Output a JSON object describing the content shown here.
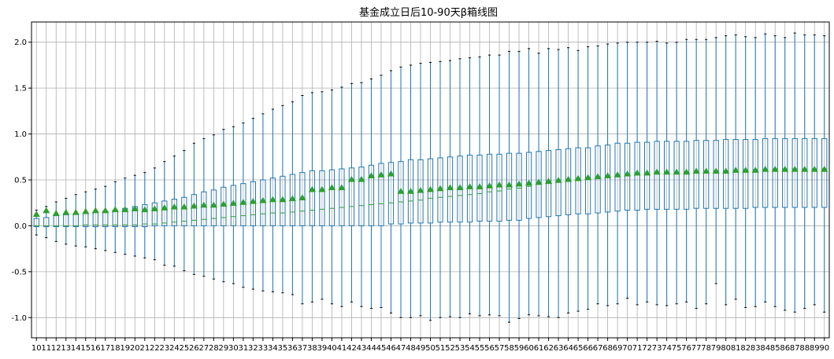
{
  "chart_data": {
    "type": "box",
    "title": "基金成立日后10-90天β箱线图",
    "xlabel": "",
    "ylabel": "",
    "ylim": [
      -1.22,
      2.22
    ],
    "yticks": [
      2.0,
      1.5,
      1.0,
      0.5,
      0.0,
      -0.5,
      -1.0
    ],
    "ytick_labels": [
      "2.0",
      "1.5",
      "1.0",
      "0.5",
      "0.0",
      "-0.5",
      "-1.0"
    ],
    "grid": true,
    "legend": "none",
    "colors": {
      "box": "#1f77b4",
      "median": "#2ca02c",
      "mean": "#2ca02c",
      "grid": "#b0b0b0",
      "axis": "#000000"
    },
    "categories": [
      "10",
      "11",
      "12",
      "13",
      "14",
      "15",
      "16",
      "17",
      "18",
      "19",
      "20",
      "21",
      "22",
      "23",
      "24",
      "25",
      "26",
      "27",
      "28",
      "29",
      "30",
      "31",
      "32",
      "33",
      "34",
      "35",
      "36",
      "37",
      "38",
      "39",
      "40",
      "41",
      "42",
      "43",
      "44",
      "45",
      "46",
      "47",
      "48",
      "49",
      "50",
      "51",
      "52",
      "53",
      "54",
      "55",
      "56",
      "57",
      "58",
      "59",
      "60",
      "61",
      "62",
      "63",
      "64",
      "65",
      "66",
      "67",
      "68",
      "69",
      "70",
      "71",
      "72",
      "73",
      "74",
      "75",
      "76",
      "77",
      "78",
      "79",
      "80",
      "81",
      "82",
      "83",
      "84",
      "85",
      "86",
      "87",
      "88",
      "89",
      "90"
    ],
    "series": [
      {
        "whisker_low": [
          -0.1,
          -0.13,
          -0.17,
          -0.2,
          -0.22,
          -0.23,
          -0.25,
          -0.27,
          -0.29,
          -0.31,
          -0.33,
          -0.35,
          -0.37,
          -0.43,
          -0.44,
          -0.49,
          -0.53,
          -0.55,
          -0.58,
          -0.61,
          -0.63,
          -0.67,
          -0.69,
          -0.71,
          -0.72,
          -0.73,
          -0.75,
          -0.85,
          -0.83,
          -0.8,
          -0.85,
          -0.88,
          -0.83,
          -0.88,
          -0.9,
          -0.89,
          -0.95,
          -1.0,
          -1.0,
          -0.98,
          -1.03,
          -1.0,
          -0.99,
          -1.0,
          -0.96,
          -0.98,
          -0.97,
          -0.98,
          -1.05,
          -1.01,
          -0.97,
          -0.98,
          -0.99,
          -1.0,
          -0.95,
          -0.93,
          -0.91,
          -0.85,
          -0.87,
          -0.85,
          -0.79,
          -0.86,
          -0.83,
          -0.86,
          -0.87,
          -0.85,
          -0.83,
          -0.9,
          -0.85,
          -0.63,
          -0.86,
          -0.8,
          -0.89,
          -0.88,
          -0.83,
          -0.88,
          -0.92,
          -0.94,
          -0.9,
          -0.86,
          -0.94
        ],
        "q1": [
          -0.01,
          -0.01,
          -0.01,
          -0.01,
          -0.01,
          -0.01,
          -0.01,
          -0.01,
          -0.01,
          -0.01,
          -0.01,
          -0.01,
          0.0,
          0.0,
          0.0,
          0.0,
          0.0,
          0.0,
          0.0,
          0.0,
          0.0,
          0.0,
          0.0,
          0.0,
          0.0,
          0.0,
          0.0,
          0.0,
          0.0,
          0.0,
          0.0,
          0.0,
          0.0,
          0.0,
          0.0,
          0.0,
          0.02,
          0.02,
          0.03,
          0.03,
          0.03,
          0.04,
          0.04,
          0.04,
          0.04,
          0.05,
          0.05,
          0.05,
          0.06,
          0.06,
          0.08,
          0.09,
          0.1,
          0.11,
          0.12,
          0.13,
          0.13,
          0.14,
          0.15,
          0.16,
          0.17,
          0.17,
          0.18,
          0.18,
          0.18,
          0.18,
          0.18,
          0.19,
          0.19,
          0.19,
          0.19,
          0.19,
          0.19,
          0.2,
          0.2,
          0.2,
          0.2,
          0.2,
          0.2,
          0.2,
          0.2
        ],
        "median": [
          0.0,
          0.0,
          0.0,
          0.0,
          0.0,
          0.01,
          0.01,
          0.01,
          0.01,
          0.01,
          0.01,
          0.02,
          0.02,
          0.03,
          0.04,
          0.05,
          0.06,
          0.07,
          0.08,
          0.09,
          0.1,
          0.11,
          0.12,
          0.13,
          0.14,
          0.14,
          0.15,
          0.16,
          0.17,
          0.18,
          0.19,
          0.2,
          0.21,
          0.22,
          0.23,
          0.24,
          0.25,
          0.26,
          0.27,
          0.28,
          0.3,
          0.31,
          0.32,
          0.33,
          0.34,
          0.35,
          0.37,
          0.38,
          0.4,
          0.41,
          0.43,
          0.45,
          0.46,
          0.48,
          0.49,
          0.5,
          0.51,
          0.52,
          0.53,
          0.54,
          0.55,
          0.56,
          0.57,
          0.57,
          0.58,
          0.58,
          0.59,
          0.59,
          0.59,
          0.6,
          0.6,
          0.6,
          0.61,
          0.61,
          0.61,
          0.62,
          0.62,
          0.62,
          0.62,
          0.62,
          0.62
        ],
        "q3": [
          0.08,
          0.09,
          0.11,
          0.12,
          0.13,
          0.14,
          0.15,
          0.16,
          0.17,
          0.19,
          0.21,
          0.23,
          0.25,
          0.27,
          0.29,
          0.31,
          0.34,
          0.37,
          0.39,
          0.42,
          0.44,
          0.46,
          0.48,
          0.5,
          0.52,
          0.54,
          0.56,
          0.58,
          0.6,
          0.6,
          0.61,
          0.62,
          0.63,
          0.64,
          0.66,
          0.68,
          0.69,
          0.7,
          0.72,
          0.72,
          0.73,
          0.74,
          0.75,
          0.76,
          0.77,
          0.77,
          0.78,
          0.78,
          0.79,
          0.79,
          0.8,
          0.81,
          0.82,
          0.83,
          0.84,
          0.85,
          0.85,
          0.87,
          0.88,
          0.9,
          0.9,
          0.91,
          0.91,
          0.92,
          0.92,
          0.92,
          0.92,
          0.93,
          0.93,
          0.93,
          0.94,
          0.94,
          0.94,
          0.94,
          0.95,
          0.95,
          0.95,
          0.95,
          0.95,
          0.95,
          0.95
        ],
        "whisker_high": [
          0.17,
          0.21,
          0.26,
          0.3,
          0.34,
          0.37,
          0.4,
          0.43,
          0.48,
          0.52,
          0.55,
          0.58,
          0.63,
          0.7,
          0.76,
          0.82,
          0.9,
          0.95,
          0.99,
          1.05,
          1.08,
          1.12,
          1.17,
          1.22,
          1.27,
          1.31,
          1.35,
          1.42,
          1.45,
          1.46,
          1.48,
          1.51,
          1.55,
          1.56,
          1.6,
          1.64,
          1.69,
          1.73,
          1.75,
          1.77,
          1.78,
          1.79,
          1.8,
          1.82,
          1.83,
          1.84,
          1.86,
          1.86,
          1.9,
          1.9,
          1.93,
          1.88,
          1.93,
          1.92,
          1.94,
          1.91,
          1.95,
          1.96,
          1.98,
          1.99,
          2.0,
          2.0,
          2.0,
          2.01,
          1.99,
          2.0,
          2.03,
          2.03,
          2.03,
          2.05,
          2.07,
          2.08,
          2.06,
          2.05,
          2.09,
          2.07,
          2.05,
          2.1,
          2.08,
          2.08,
          2.07
        ],
        "mean": [
          0.13,
          0.17,
          0.14,
          0.15,
          0.15,
          0.16,
          0.17,
          0.17,
          0.18,
          0.18,
          0.19,
          0.18,
          0.19,
          0.2,
          0.21,
          0.21,
          0.22,
          0.23,
          0.23,
          0.24,
          0.25,
          0.26,
          0.27,
          0.28,
          0.29,
          0.29,
          0.3,
          0.31,
          0.4,
          0.4,
          0.42,
          0.42,
          0.51,
          0.51,
          0.55,
          0.56,
          0.57,
          0.38,
          0.38,
          0.39,
          0.4,
          0.41,
          0.42,
          0.42,
          0.43,
          0.43,
          0.44,
          0.45,
          0.45,
          0.46,
          0.47,
          0.48,
          0.49,
          0.5,
          0.51,
          0.52,
          0.53,
          0.54,
          0.55,
          0.56,
          0.57,
          0.58,
          0.58,
          0.59,
          0.59,
          0.59,
          0.59,
          0.6,
          0.6,
          0.6,
          0.6,
          0.61,
          0.61,
          0.61,
          0.62,
          0.62,
          0.62,
          0.62,
          0.62,
          0.62,
          0.62
        ]
      }
    ]
  }
}
